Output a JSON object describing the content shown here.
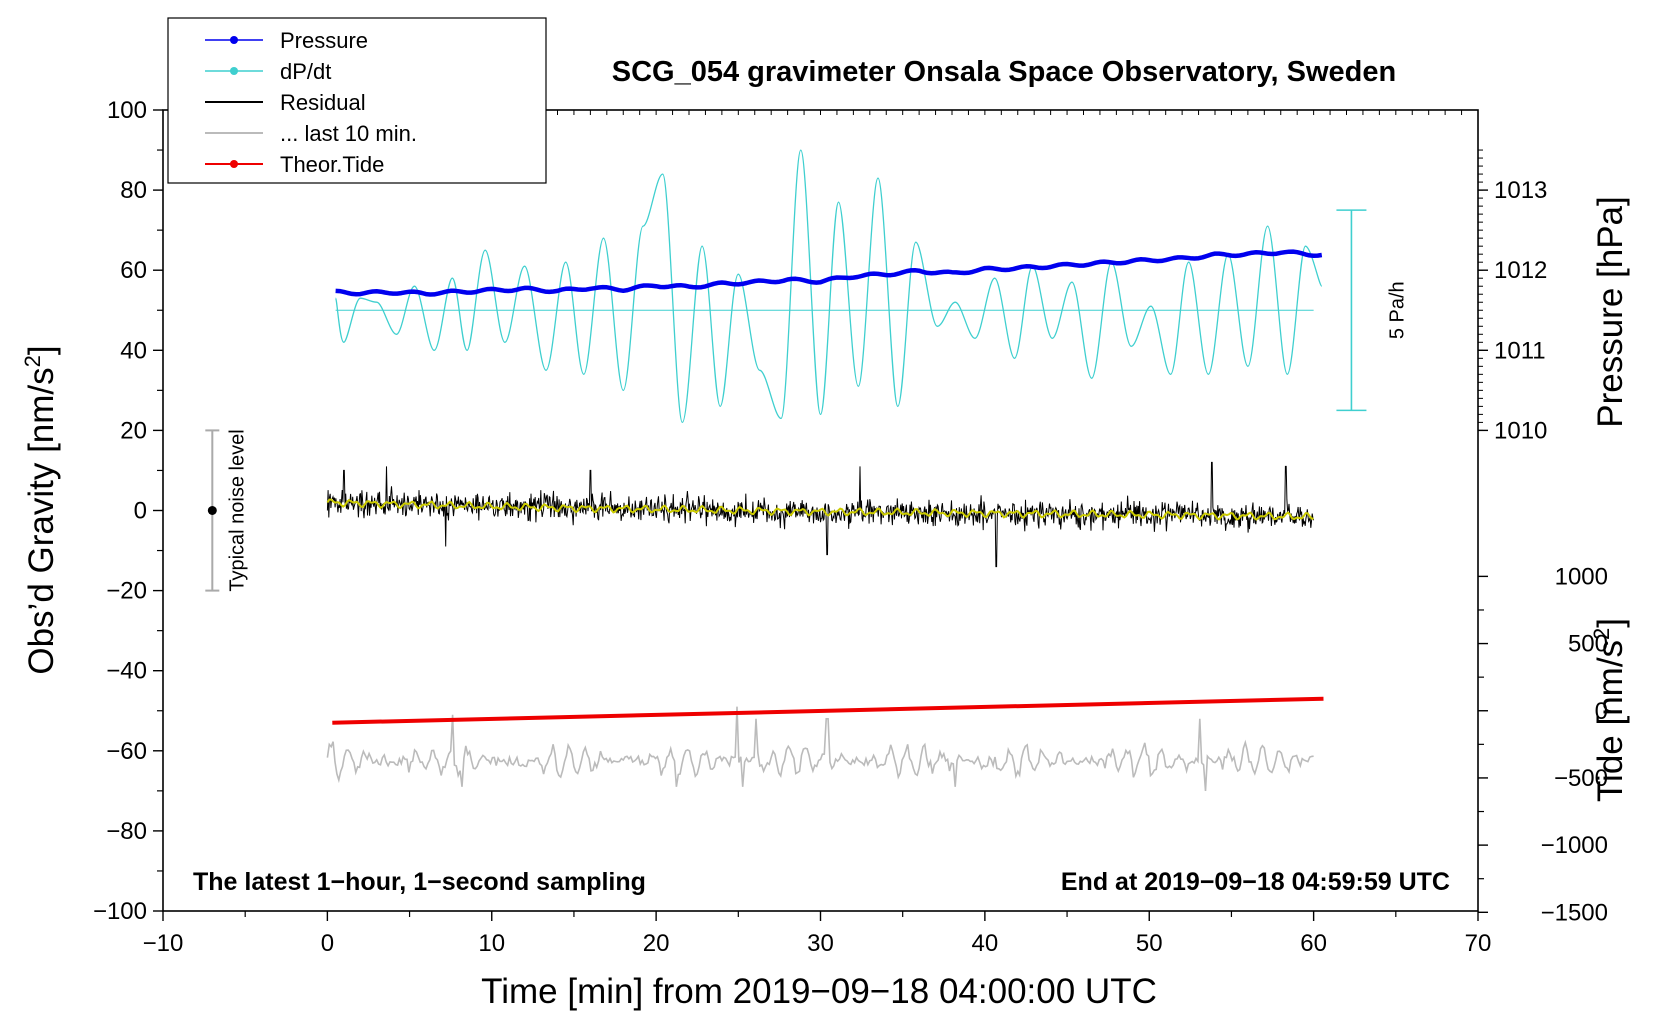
{
  "chart_data": {
    "type": "line",
    "title": "SCG_054 gravimeter Onsala Space Observatory, Sweden",
    "xlabel": "Time [min] from 2019−09−18 04:00:00 UTC",
    "ylabel": "Obs’d Gravity [nm/s²]",
    "ylabel_main": "Obs’d Gravity [nm/s",
    "ylabel_sup": "2",
    "ylabel_close": "]",
    "right_pressure_label": "Pressure [hPa]",
    "right_tide_label_main": "Tide [nm/s",
    "right_tide_label_sup": "2",
    "right_tide_label_close": "]",
    "xlim": [
      -10,
      70
    ],
    "ylim": [
      -100,
      100
    ],
    "x_ticks": [
      -10,
      0,
      10,
      20,
      30,
      40,
      50,
      60,
      70
    ],
    "x_tick_labels": [
      "−10",
      "0",
      "10",
      "20",
      "30",
      "40",
      "50",
      "60",
      "70"
    ],
    "y_ticks": [
      -100,
      -80,
      -60,
      -40,
      -20,
      0,
      20,
      40,
      60,
      80,
      100
    ],
    "y_tick_labels": [
      "−100",
      "−80",
      "−60",
      "−40",
      "−20",
      "0",
      "20",
      "40",
      "60",
      "80",
      "100"
    ],
    "pressure_axis": {
      "ticks": [
        1010,
        1011,
        1012,
        1013
      ],
      "labels": [
        "1010",
        "1011",
        "1012",
        "1013"
      ],
      "gravity_at_1010": 20,
      "gravity_per_hpa": 20
    },
    "tide_axis": {
      "ticks": [
        -1500,
        -1000,
        -500,
        0,
        500,
        1000
      ],
      "labels": [
        "−1500",
        "−1000",
        "−500",
        "0",
        "500",
        "1000"
      ],
      "gravity_at_0": -50,
      "gravity_per_unit": 0.03355
    },
    "legend": {
      "position": "top-left",
      "entries": [
        {
          "label": "Pressure",
          "color": "#0000ee",
          "marker": true
        },
        {
          "label": "dP/dt",
          "color": "#3fcfcf",
          "marker": true
        },
        {
          "label": "Residual",
          "color": "#000000",
          "marker": false
        },
        {
          "label": "... last 10 min.",
          "color": "#bbbbbb",
          "marker": false
        },
        {
          "label": "Theor.Tide",
          "color": "#ee0000",
          "marker": true
        }
      ]
    },
    "annotations": {
      "noise_label": "Typical noise level",
      "noise_range": [
        -20,
        20
      ],
      "noise_x": -7,
      "rate_label": "5 Pa/h",
      "rate_range": [
        25,
        75
      ],
      "rate_x": 62.3,
      "bottom_left": "The latest 1−hour, 1−second sampling",
      "bottom_right": "End at 2019−09−18 04:59:59 UTC"
    },
    "series": [
      {
        "name": "Pressure",
        "color": "#0000ee",
        "x": [
          0.5,
          2,
          4,
          6,
          8,
          10,
          12,
          14,
          16,
          18,
          20,
          22,
          24,
          26,
          28,
          30,
          32,
          34,
          36,
          38,
          40,
          42,
          44,
          46,
          48,
          50,
          52,
          54,
          56,
          58,
          60.5
        ],
        "y": [
          54.5,
          54.3,
          54.5,
          54.2,
          54.6,
          55.0,
          55.3,
          54.8,
          55.6,
          55.2,
          56.2,
          55.8,
          56.6,
          57.0,
          57.6,
          57.2,
          58.5,
          59.0,
          59.8,
          59.2,
          60.2,
          60.5,
          61.0,
          61.5,
          62.0,
          62.5,
          62.9,
          63.8,
          64.0,
          64.5,
          63.8
        ]
      },
      {
        "name": "dP/dt",
        "color": "#3fcfcf",
        "baseline": 50,
        "x": [
          0.5,
          1.0,
          2.0,
          3.0,
          4.2,
          5.3,
          6.5,
          7.6,
          8.5,
          9.6,
          10.8,
          12.0,
          13.3,
          14.5,
          15.6,
          16.8,
          18.0,
          19.2,
          20.4,
          21.6,
          22.8,
          23.9,
          25.0,
          26.3,
          27.6,
          28.8,
          30.0,
          31.1,
          32.3,
          33.5,
          34.7,
          35.8,
          37.1,
          38.2,
          39.4,
          40.6,
          41.8,
          42.9,
          44.1,
          45.3,
          46.5,
          47.7,
          48.9,
          50.1,
          51.3,
          52.4,
          53.6,
          54.8,
          56.0,
          57.2,
          58.4,
          59.5,
          60.5
        ],
        "y": [
          53,
          42,
          53,
          52,
          44,
          56,
          40,
          58,
          40,
          65,
          42,
          61,
          35,
          62,
          34,
          68,
          30,
          71,
          84,
          22,
          66,
          26,
          59,
          35,
          23,
          90,
          24,
          77,
          31,
          83,
          26,
          67,
          46,
          52,
          43,
          58,
          38,
          61,
          43,
          57,
          33,
          62,
          41,
          51,
          34,
          62,
          34,
          64,
          36,
          71,
          34,
          66,
          56
        ]
      },
      {
        "name": "Residual",
        "color": "#000000",
        "x_start": 0,
        "x_end": 60,
        "trend_x": [
          0,
          10,
          20,
          30,
          40,
          50,
          60
        ],
        "trend_y": [
          2.0,
          1.0,
          0.3,
          -0.3,
          -0.7,
          -1.1,
          -1.6
        ],
        "typical_amplitude": 4,
        "extreme_x": [
          1.0,
          3.6,
          7.2,
          16.0,
          30.4,
          32.4,
          40.7,
          53.8,
          58.3
        ],
        "extreme_y": [
          10,
          11,
          -9,
          10,
          -11,
          11,
          -14,
          12,
          11
        ]
      },
      {
        "name": "Residual smoothed",
        "color": "#cccc00",
        "x": [
          0,
          5,
          10,
          15,
          20,
          25,
          30,
          35,
          40,
          45,
          50,
          55,
          60
        ],
        "y": [
          2.0,
          1.5,
          1.0,
          0.6,
          0.3,
          0.0,
          -0.3,
          -0.5,
          -0.7,
          -0.9,
          -1.1,
          -1.3,
          -1.6
        ]
      },
      {
        "name": "Theor.Tide",
        "color": "#ee0000",
        "x": [
          0.3,
          60.6
        ],
        "y": [
          -53.0,
          -47.0
        ]
      },
      {
        "name": "... last 10 min.",
        "color": "#bbbbbb",
        "x_start": 0,
        "x_end": 60,
        "center": -62.5,
        "typical_amplitude": 3.5,
        "extreme_x": [
          7.6,
          8.2,
          21.2,
          24.9,
          25.3,
          26.1,
          30.4,
          38.2,
          53.1,
          53.4
        ],
        "extreme_y": [
          -51,
          -69,
          -69,
          -49,
          -69,
          -52,
          -52,
          -69,
          -52,
          -70
        ]
      }
    ]
  }
}
